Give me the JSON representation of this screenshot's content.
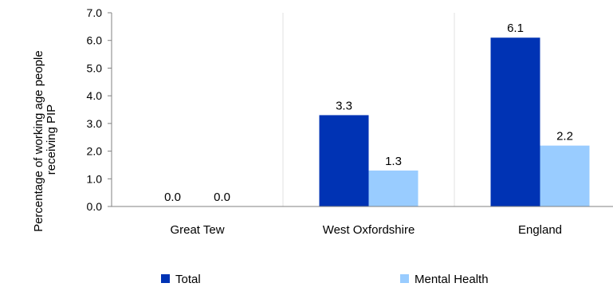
{
  "chart_data": {
    "type": "bar",
    "categories": [
      "Great Tew",
      "West Oxfordshire",
      "England"
    ],
    "series": [
      {
        "name": "Total",
        "values": [
          0.0,
          3.3,
          6.1
        ],
        "color": "#0033b4"
      },
      {
        "name": "Mental Health",
        "values": [
          0.0,
          1.3,
          2.2
        ],
        "color": "#99ccff"
      }
    ],
    "ylabel": "Percentage of working age people receiving PIP",
    "ylabel_lines": [
      "Percentage of working age people",
      "receiving PIP"
    ],
    "ylim": [
      0,
      7
    ],
    "yticks": [
      0,
      1,
      2,
      3,
      4,
      5,
      6,
      7
    ],
    "tick_decimals": 1,
    "label_decimals": 1,
    "gridlines": "vertical category separators",
    "legend_position": "bottom"
  }
}
